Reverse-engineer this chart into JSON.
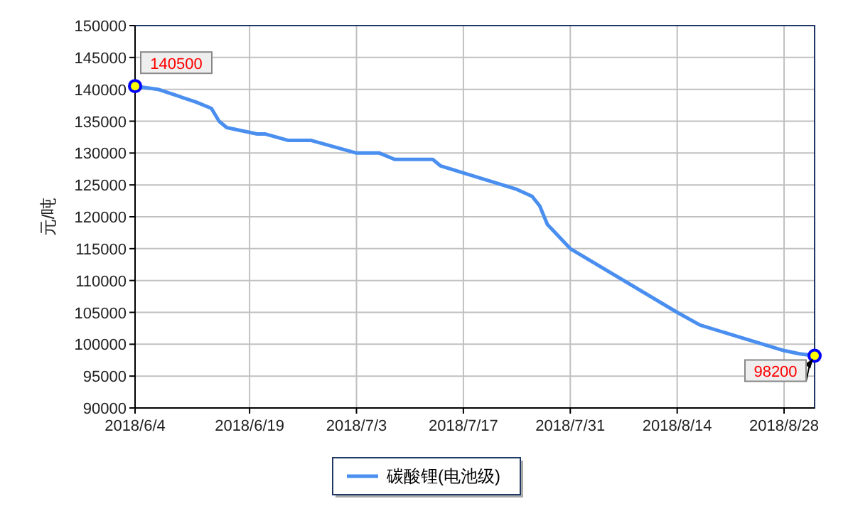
{
  "chart_data": {
    "type": "line",
    "ylabel": "元/吨",
    "x": [
      "2018-06-04",
      "2018-06-07",
      "2018-06-12",
      "2018-06-14",
      "2018-06-15",
      "2018-06-16",
      "2018-06-20",
      "2018-06-21",
      "2018-06-24",
      "2018-06-27",
      "2018-07-03",
      "2018-07-06",
      "2018-07-08",
      "2018-07-13",
      "2018-07-14",
      "2018-07-24",
      "2018-07-26",
      "2018-07-27",
      "2018-07-28",
      "2018-07-31",
      "2018-08-14",
      "2018-08-17",
      "2018-08-28",
      "2018-08-30",
      "2018-09-01"
    ],
    "series": [
      {
        "name": "碳酸锂(电池级)",
        "color": "#4a8ff0",
        "values": [
          140500,
          140000,
          138000,
          137000,
          135000,
          134000,
          133000,
          133000,
          132000,
          132000,
          130000,
          130000,
          129000,
          129000,
          128000,
          124300,
          123200,
          121700,
          118800,
          115000,
          105000,
          103000,
          99000,
          98500,
          98200
        ]
      }
    ],
    "xlim": [
      "2018-06-04",
      "2018-09-01"
    ],
    "xticks": [
      {
        "value": "2018-06-04",
        "label": "2018/6/4"
      },
      {
        "value": "2018-06-19",
        "label": "2018/6/19"
      },
      {
        "value": "2018-07-03",
        "label": "2018/7/3"
      },
      {
        "value": "2018-07-17",
        "label": "2018/7/17"
      },
      {
        "value": "2018-07-31",
        "label": "2018/7/31"
      },
      {
        "value": "2018-08-14",
        "label": "2018/8/14"
      },
      {
        "value": "2018-08-28",
        "label": "2018/8/28"
      }
    ],
    "ylim": [
      90000,
      150000
    ],
    "yticks": [
      90000,
      95000,
      100000,
      105000,
      110000,
      115000,
      120000,
      125000,
      130000,
      135000,
      140000,
      145000,
      150000
    ],
    "annotations": [
      {
        "text": "140500",
        "x": "2018-06-04",
        "y": 140500
      },
      {
        "text": "98200",
        "x": "2018-09-01",
        "y": 98200
      }
    ],
    "grid": true,
    "legend": "bottom",
    "line_style": "solid",
    "marker": "none"
  }
}
